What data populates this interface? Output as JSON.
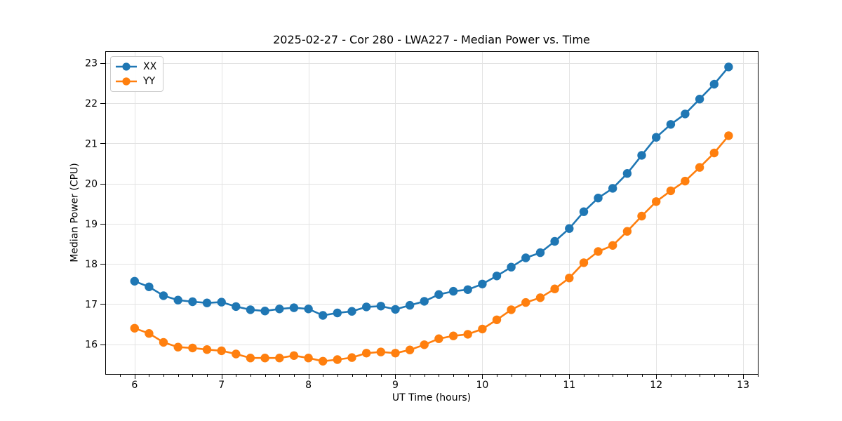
{
  "chart_data": {
    "type": "line",
    "title": "2025-02-27 - Cor 280 - LWA227 - Median Power vs. Time",
    "xlabel": "UT Time (hours)",
    "ylabel": "Median Power (CPU)",
    "xlim": [
      5.663,
      13.169
    ],
    "ylim": [
      15.262,
      23.291
    ],
    "xticks": [
      6,
      7,
      8,
      9,
      10,
      11,
      12,
      13
    ],
    "yticks": [
      16,
      17,
      18,
      19,
      20,
      21,
      22,
      23
    ],
    "x_minor_step": 0.1667,
    "grid": true,
    "grid_color": "#e3e3e3",
    "legend_position": "upper-left",
    "x": [
      6.0,
      6.167,
      6.333,
      6.5,
      6.667,
      6.833,
      7.0,
      7.167,
      7.333,
      7.5,
      7.667,
      7.833,
      8.0,
      8.167,
      8.333,
      8.5,
      8.667,
      8.833,
      9.0,
      9.167,
      9.333,
      9.5,
      9.667,
      9.833,
      10.0,
      10.167,
      10.333,
      10.5,
      10.667,
      10.833,
      11.0,
      11.167,
      11.333,
      11.5,
      11.667,
      11.833,
      12.0,
      12.167,
      12.333,
      12.5,
      12.667,
      12.833
    ],
    "series": [
      {
        "name": "XX",
        "color": "#1f77b4",
        "values": [
          17.57,
          17.43,
          17.21,
          17.1,
          17.06,
          17.03,
          17.05,
          16.94,
          16.86,
          16.83,
          16.88,
          16.91,
          16.88,
          16.72,
          16.78,
          16.82,
          16.93,
          16.95,
          16.87,
          16.97,
          17.07,
          17.24,
          17.32,
          17.36,
          17.5,
          17.7,
          17.92,
          18.15,
          18.28,
          18.56,
          18.88,
          19.3,
          19.64,
          19.88,
          20.25,
          20.7,
          21.15,
          21.47,
          21.73,
          22.1,
          22.47,
          22.9
        ]
      },
      {
        "name": "YY",
        "color": "#ff7f0e",
        "values": [
          16.4,
          16.27,
          16.05,
          15.93,
          15.91,
          15.87,
          15.84,
          15.76,
          15.66,
          15.66,
          15.66,
          15.72,
          15.66,
          15.58,
          15.62,
          15.67,
          15.78,
          15.81,
          15.78,
          15.86,
          15.99,
          16.14,
          16.21,
          16.25,
          16.38,
          16.61,
          16.86,
          17.04,
          17.16,
          17.38,
          17.65,
          18.03,
          18.31,
          18.46,
          18.81,
          19.19,
          19.55,
          19.82,
          20.06,
          20.4,
          20.76,
          21.19
        ]
      }
    ]
  }
}
